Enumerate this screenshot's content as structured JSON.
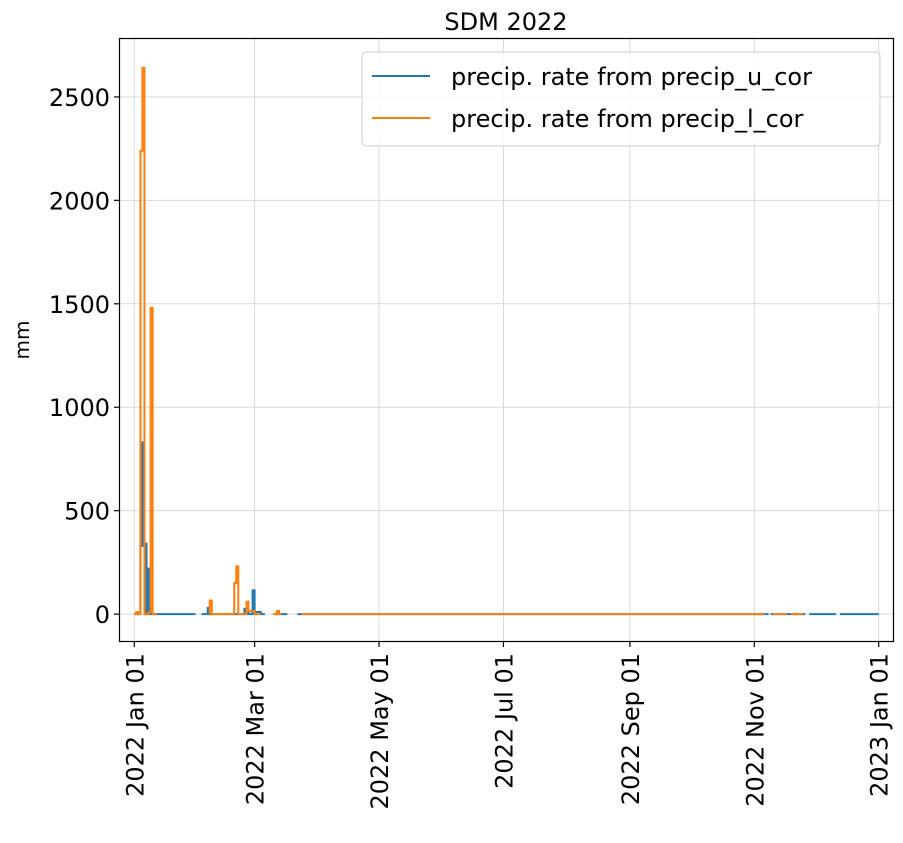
{
  "chart_data": {
    "type": "line",
    "title": "SDM 2022",
    "xlabel": "",
    "ylabel": "mm",
    "grid": true,
    "legend_position": "top-right",
    "xlim": [
      "2021-12-25",
      "2023-01-08"
    ],
    "ylim": [
      -130,
      2780
    ],
    "x_ticks": [
      "2022-01-01",
      "2022-03-01",
      "2022-05-01",
      "2022-07-01",
      "2022-09-01",
      "2022-11-01",
      "2023-01-01"
    ],
    "x_tick_labels": [
      "2022 Jan 01",
      "2022 Mar 01",
      "2022 May 01",
      "2022 Jul 01",
      "2022 Sep 01",
      "2022 Nov 01",
      "2023 Jan 01"
    ],
    "y_ticks": [
      0,
      500,
      1000,
      1500,
      2000,
      2500
    ],
    "y_tick_labels": [
      "0",
      "500",
      "1000",
      "1500",
      "2000",
      "2500"
    ],
    "series": [
      {
        "name": "precip. rate from precip_u_cor",
        "color": "#1f77b4",
        "segments": [
          [
            [
              "2022-01-01",
              0
            ],
            [
              "2022-01-04",
              0
            ],
            [
              "2022-01-04",
              330
            ],
            [
              "2022-01-05",
              330
            ],
            [
              "2022-01-05",
              830
            ],
            [
              "2022-01-06",
              830
            ],
            [
              "2022-01-06",
              340
            ],
            [
              "2022-01-07",
              340
            ],
            [
              "2022-01-07",
              0
            ],
            [
              "2022-01-08",
              0
            ],
            [
              "2022-01-08",
              220
            ],
            [
              "2022-01-09",
              220
            ],
            [
              "2022-01-09",
              0
            ],
            [
              "2022-01-31",
              0
            ]
          ],
          [
            [
              "2022-02-03",
              0
            ],
            [
              "2022-02-06",
              0
            ],
            [
              "2022-02-06",
              30
            ],
            [
              "2022-02-07",
              30
            ],
            [
              "2022-02-07",
              0
            ],
            [
              "2022-02-24",
              0
            ],
            [
              "2022-02-24",
              25
            ],
            [
              "2022-02-26",
              25
            ],
            [
              "2022-02-26",
              0
            ],
            [
              "2022-02-28",
              0
            ],
            [
              "2022-02-28",
              115
            ],
            [
              "2022-03-01",
              115
            ],
            [
              "2022-03-01",
              10
            ],
            [
              "2022-03-04",
              10
            ],
            [
              "2022-03-04",
              0
            ],
            [
              "2022-03-06",
              0
            ]
          ],
          [
            [
              "2022-03-11",
              0
            ],
            [
              "2022-03-12",
              0
            ],
            [
              "2022-03-12",
              10
            ],
            [
              "2022-03-13",
              10
            ],
            [
              "2022-03-13",
              0
            ],
            [
              "2022-03-17",
              0
            ]
          ],
          [
            [
              "2022-03-22",
              0
            ],
            [
              "2022-11-08",
              0
            ]
          ],
          [
            [
              "2022-11-09",
              0
            ],
            [
              "2022-11-26",
              0
            ]
          ],
          [
            [
              "2022-11-28",
              0
            ],
            [
              "2022-12-11",
              0
            ]
          ],
          [
            [
              "2022-12-13",
              0
            ],
            [
              "2023-01-01",
              0
            ]
          ]
        ]
      },
      {
        "name": "precip. rate from precip_l_cor",
        "color": "#ff7f0e",
        "segments": [
          [
            [
              "2022-01-01",
              0
            ],
            [
              "2022-01-02",
              0
            ],
            [
              "2022-01-02",
              10
            ],
            [
              "2022-01-03",
              10
            ],
            [
              "2022-01-03",
              0
            ],
            [
              "2022-01-04",
              0
            ],
            [
              "2022-01-04",
              2240
            ],
            [
              "2022-01-05",
              2240
            ],
            [
              "2022-01-05",
              2640
            ],
            [
              "2022-01-06",
              2640
            ],
            [
              "2022-01-06",
              0
            ],
            [
              "2022-01-08",
              0
            ],
            [
              "2022-01-08",
              10
            ],
            [
              "2022-01-09",
              10
            ],
            [
              "2022-01-09",
              1480
            ],
            [
              "2022-01-10",
              1480
            ],
            [
              "2022-01-10",
              0
            ],
            [
              "2022-01-12",
              0
            ]
          ],
          [
            [
              "2022-02-07",
              0
            ],
            [
              "2022-02-07",
              65
            ],
            [
              "2022-02-08",
              65
            ],
            [
              "2022-02-08",
              0
            ],
            [
              "2022-02-19",
              0
            ],
            [
              "2022-02-19",
              150
            ],
            [
              "2022-02-20",
              150
            ],
            [
              "2022-02-20",
              230
            ],
            [
              "2022-02-21",
              230
            ],
            [
              "2022-02-21",
              0
            ],
            [
              "2022-02-25",
              0
            ],
            [
              "2022-02-25",
              60
            ],
            [
              "2022-02-26",
              60
            ],
            [
              "2022-02-26",
              15
            ],
            [
              "2022-03-01",
              15
            ],
            [
              "2022-03-01",
              0
            ],
            [
              "2022-03-04",
              0
            ]
          ],
          [
            [
              "2022-03-10",
              0
            ],
            [
              "2022-03-12",
              0
            ],
            [
              "2022-03-12",
              15
            ],
            [
              "2022-03-13",
              15
            ],
            [
              "2022-03-13",
              0
            ],
            [
              "2022-03-14",
              0
            ]
          ],
          [
            [
              "2022-03-24",
              0
            ],
            [
              "2022-11-06",
              0
            ]
          ],
          [
            [
              "2022-11-10",
              0
            ],
            [
              "2022-11-17",
              0
            ]
          ],
          [
            [
              "2022-11-19",
              0
            ],
            [
              "2022-11-25",
              0
            ]
          ]
        ]
      }
    ]
  }
}
